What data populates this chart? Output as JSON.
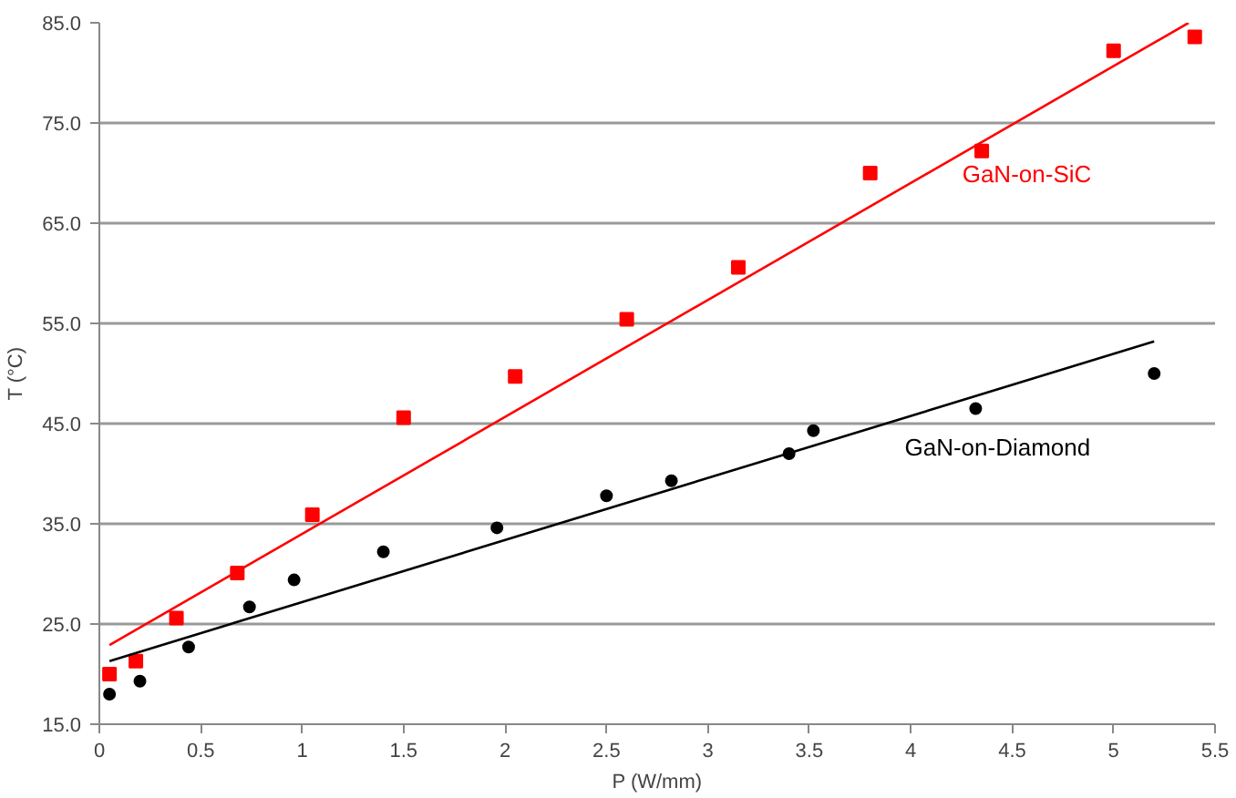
{
  "chart_data": {
    "type": "scatter",
    "xlabel": "P (W/mm)",
    "ylabel": "T (°C)",
    "xlim": [
      0,
      5.5
    ],
    "ylim": [
      15,
      85
    ],
    "xticks": [
      0,
      0.5,
      1,
      1.5,
      2,
      2.5,
      3,
      3.5,
      4,
      4.5,
      5,
      5.5
    ],
    "yticks": [
      {
        "value": 15,
        "label": "15.0"
      },
      {
        "value": 25,
        "label": "25.0"
      },
      {
        "value": 35,
        "label": "35.0"
      },
      {
        "value": 45,
        "label": "45.0"
      },
      {
        "value": 55,
        "label": "55.0"
      },
      {
        "value": 65,
        "label": "65.0"
      },
      {
        "value": 75,
        "label": "75.0"
      },
      {
        "value": 85,
        "label": "85.0"
      }
    ],
    "grid": "y",
    "series": [
      {
        "name": "GaN-on-SiC",
        "marker": "square",
        "color": "#ff0000",
        "x": [
          0.05,
          0.18,
          0.38,
          0.68,
          1.05,
          1.5,
          2.05,
          2.6,
          3.15,
          3.8,
          4.35,
          5.0,
          5.4
        ],
        "values": [
          20.0,
          21.3,
          25.6,
          30.1,
          35.9,
          45.6,
          49.7,
          55.4,
          60.6,
          70.0,
          72.2,
          82.2,
          83.6
        ]
      },
      {
        "type": "line",
        "color": "#ff0000",
        "x": [
          0.05,
          5.37
        ],
        "values": [
          22.9,
          85.0
        ]
      },
      {
        "name": "GaN-on-Diamond",
        "marker": "circle",
        "color": "#000000",
        "x": [
          0.05,
          0.2,
          0.44,
          0.74,
          0.96,
          1.4,
          1.96,
          2.5,
          2.82,
          3.4,
          3.52,
          4.32,
          5.2
        ],
        "values": [
          18.0,
          19.3,
          22.7,
          26.7,
          29.4,
          32.2,
          34.6,
          37.8,
          39.3,
          42.0,
          44.3,
          46.5,
          50.0
        ]
      },
      {
        "type": "line",
        "color": "#000000",
        "x": [
          0.05,
          5.2
        ],
        "values": [
          21.3,
          53.2
        ]
      }
    ]
  }
}
